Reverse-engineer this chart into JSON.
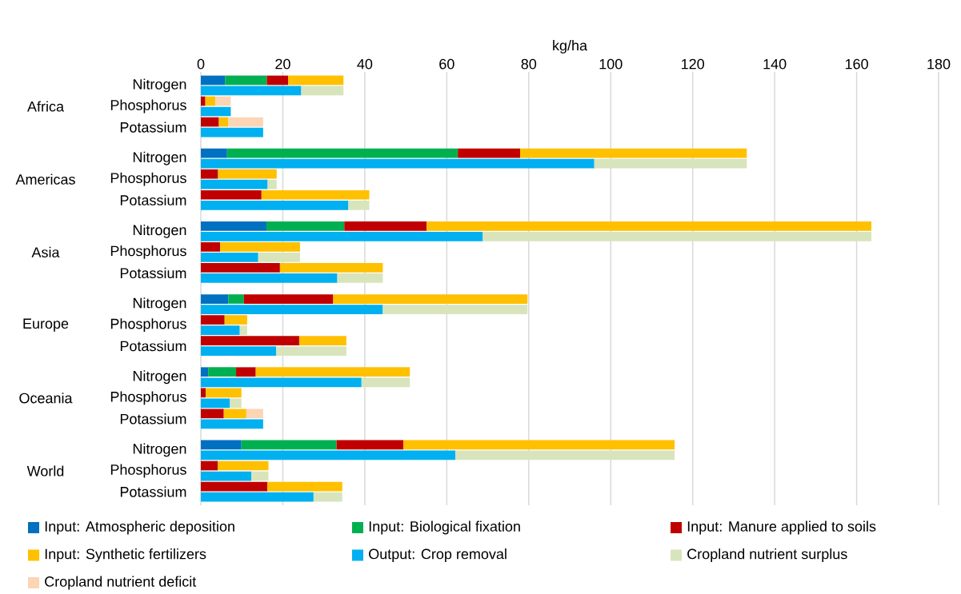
{
  "chart_data": {
    "type": "bar",
    "orientation": "horizontal",
    "stacked": true,
    "xlabel": "kg/ha",
    "categories": [
      "Nitrogen",
      null,
      "Phosphorus",
      null,
      "Potassium",
      null,
      null,
      "Nitrogen",
      null,
      "Phosphorus",
      null,
      "Potassium",
      null,
      null,
      "Nitrogen",
      null,
      "Phosphorus",
      null,
      "Potassium",
      null,
      null,
      "Nitrogen",
      null,
      "Phosphorus",
      null,
      "Potassium",
      null,
      null,
      "Nitrogen",
      null,
      "Phosphorus",
      null,
      "Potassium",
      null,
      null,
      "Nitrogen",
      null,
      "Phosphorus",
      null,
      "Potassium",
      null
    ],
    "annotations": [
      "Africa",
      "Americas",
      "Asia",
      "Europe",
      "Oceania",
      "World"
    ],
    "series": [
      {
        "name": "Input: Atmospheric deposition",
        "color": "#0070c0",
        "values": [
          5.9,
          null,
          null,
          null,
          null,
          null,
          null,
          6.4,
          null,
          null,
          null,
          null,
          null,
          null,
          16.0,
          null,
          null,
          null,
          null,
          null,
          null,
          6.7,
          null,
          null,
          null,
          null,
          null,
          null,
          1.8,
          null,
          null,
          null,
          null,
          null,
          null,
          9.9,
          null,
          null,
          null,
          null,
          null
        ]
      },
      {
        "name": "Input: Biological fixation",
        "color": "#00b050",
        "values": [
          10.2,
          null,
          null,
          null,
          null,
          null,
          null,
          56.3,
          null,
          null,
          null,
          null,
          null,
          null,
          19.0,
          null,
          null,
          null,
          null,
          null,
          null,
          3.8,
          null,
          null,
          null,
          null,
          null,
          null,
          6.8,
          null,
          null,
          null,
          null,
          null,
          null,
          23.2,
          null,
          null,
          null,
          null,
          null
        ]
      },
      {
        "name": "Input: Manure applied to soils",
        "color": "#c00000",
        "values": [
          5.2,
          null,
          1.1,
          null,
          4.4,
          null,
          null,
          15.2,
          null,
          4.2,
          null,
          14.8,
          null,
          null,
          20.1,
          null,
          4.7,
          null,
          19.3,
          null,
          null,
          21.8,
          null,
          5.8,
          null,
          24.0,
          null,
          null,
          4.8,
          null,
          1.2,
          null,
          5.6,
          null,
          null,
          16.3,
          null,
          4.1,
          null,
          16.2,
          null
        ]
      },
      {
        "name": "Input: Synthetic fertilizers",
        "color": "#ffc000",
        "values": [
          13.5,
          null,
          2.4,
          null,
          2.3,
          null,
          null,
          55.3,
          null,
          14.3,
          null,
          26.3,
          null,
          null,
          108.5,
          null,
          19.5,
          null,
          25.1,
          null,
          null,
          47.4,
          null,
          5.5,
          null,
          11.5,
          null,
          null,
          37.6,
          null,
          8.7,
          null,
          5.5,
          null,
          null,
          66.2,
          null,
          12.4,
          null,
          18.3,
          null
        ]
      },
      {
        "name": "Output: Crop removal",
        "color": "#00b0f0",
        "values": [
          null,
          24.5,
          null,
          7.3,
          null,
          15.2,
          null,
          null,
          96.0,
          null,
          16.3,
          null,
          36.0,
          null,
          null,
          68.8,
          null,
          14.0,
          null,
          33.3,
          null,
          null,
          44.4,
          null,
          9.5,
          null,
          18.4,
          null,
          null,
          39.2,
          null,
          7.1,
          null,
          15.2,
          null,
          null,
          62.1,
          null,
          12.3,
          null,
          27.5
        ]
      },
      {
        "name": "Cropland nutrient surplus",
        "color": "#d8e4bc",
        "values": [
          null,
          10.3,
          null,
          null,
          null,
          null,
          null,
          null,
          37.2,
          null,
          2.2,
          null,
          5.1,
          null,
          null,
          94.8,
          null,
          10.2,
          null,
          11.1,
          null,
          null,
          35.3,
          null,
          1.8,
          null,
          17.1,
          null,
          null,
          11.8,
          null,
          2.8,
          null,
          null,
          null,
          null,
          53.5,
          null,
          4.2,
          null,
          7.0
        ]
      },
      {
        "name": "Cropland nutrient deficit",
        "color": "#fcd5b5",
        "values": [
          null,
          null,
          3.8,
          null,
          8.5,
          null,
          null,
          null,
          null,
          null,
          null,
          null,
          null,
          null,
          null,
          null,
          null,
          null,
          null,
          null,
          null,
          null,
          null,
          null,
          null,
          null,
          null,
          null,
          null,
          null,
          null,
          null,
          4.1,
          null,
          null,
          null,
          null,
          null,
          null,
          null,
          null
        ]
      }
    ],
    "xlim": [
      0,
      180
    ],
    "xticks": [
      0,
      20,
      40,
      60,
      80,
      100,
      120,
      140,
      160,
      180
    ],
    "grid": "x",
    "legend": "bottom"
  }
}
